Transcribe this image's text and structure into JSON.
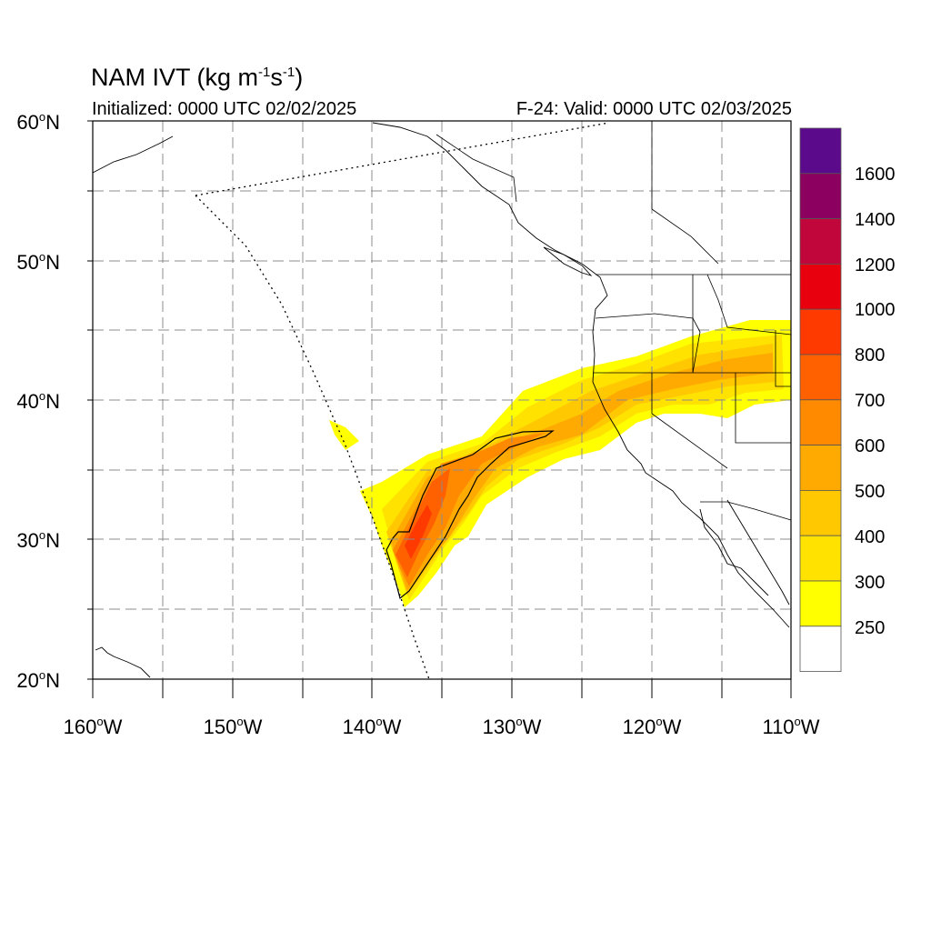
{
  "title": {
    "main": "NAM IVT (kg m",
    "sup1": "-1",
    "mid": "s",
    "sup2": "-1",
    "end": ")"
  },
  "subtitle_left": "Initialized: 0000 UTC 02/02/2025",
  "subtitle_right": "F-24: Valid: 0000 UTC 02/03/2025",
  "lat_labels": [
    {
      "value": "60",
      "hemi": "N"
    },
    {
      "value": "50",
      "hemi": "N"
    },
    {
      "value": "40",
      "hemi": "N"
    },
    {
      "value": "30",
      "hemi": "N"
    },
    {
      "value": "20",
      "hemi": "N"
    }
  ],
  "lon_labels": [
    {
      "value": "160",
      "hemi": "W"
    },
    {
      "value": "150",
      "hemi": "W"
    },
    {
      "value": "140",
      "hemi": "W"
    },
    {
      "value": "130",
      "hemi": "W"
    },
    {
      "value": "120",
      "hemi": "W"
    },
    {
      "value": "110",
      "hemi": "W"
    }
  ],
  "degree_symbol": "o",
  "map_extent": {
    "lon": [
      -160,
      -110
    ],
    "lat": [
      20,
      60
    ]
  },
  "colorbar": {
    "labels": [
      "1600",
      "1400",
      "1200",
      "1000",
      "800",
      "700",
      "600",
      "500",
      "400",
      "300",
      "250"
    ],
    "colors": [
      "#5c0a8c",
      "#8c005f",
      "#c0063a",
      "#e8000e",
      "#ff3a00",
      "#ff6000",
      "#ff8a00",
      "#ffaa00",
      "#ffc800",
      "#ffe200",
      "#ffff00",
      "#ffffff"
    ]
  },
  "colors": {
    "ivt_250": "#ffff00",
    "ivt_300": "#ffe200",
    "ivt_400": "#ffc800",
    "ivt_500": "#ffaa00",
    "ivt_600": "#ff8a00",
    "ivt_700": "#ff6000",
    "ivt_800": "#ff3a00"
  }
}
